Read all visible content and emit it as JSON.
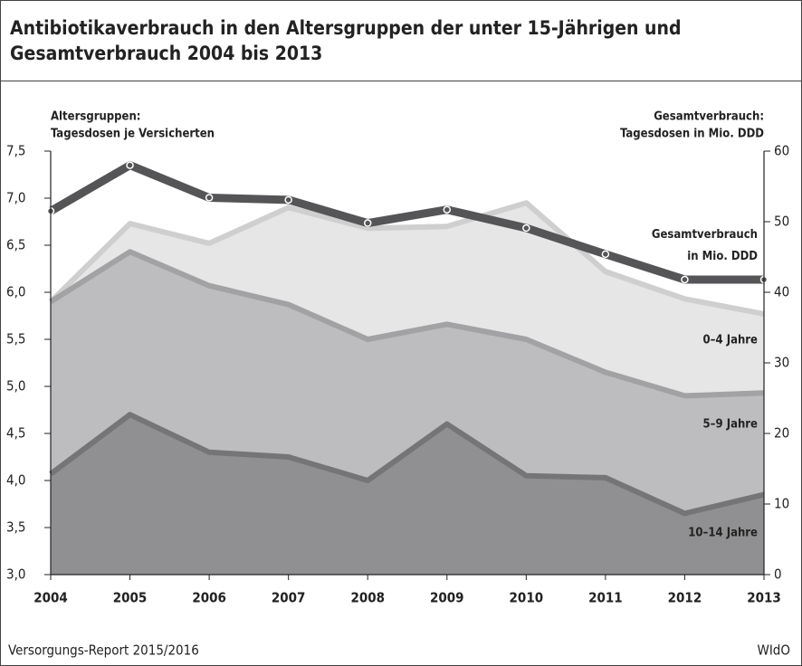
{
  "chart_data": {
    "type": "area-line",
    "title": "Antibiotikaverbrauch in den Altersgruppen der unter 15-Jährigen und Gesamtverbrauch 2004 bis 2013",
    "y_label": [
      "Altersgruppen:",
      "Tagesdosen je Versicherten"
    ],
    "y2_label": [
      "Gesamtverbrauch:",
      "Tagesdosen in Mio. DDD"
    ],
    "categories": [
      "2004",
      "2005",
      "2006",
      "2007",
      "2008",
      "2009",
      "2010",
      "2011",
      "2012",
      "2013"
    ],
    "ylim": [
      3.0,
      7.5
    ],
    "yticks": [
      {
        "value": 3.0,
        "label": "3,0"
      },
      {
        "value": 3.5,
        "label": "3,5"
      },
      {
        "value": 4.0,
        "label": "4,0"
      },
      {
        "value": 4.5,
        "label": "4,5"
      },
      {
        "value": 5.0,
        "label": "5,0"
      },
      {
        "value": 5.5,
        "label": "5,5"
      },
      {
        "value": 6.0,
        "label": "6,0"
      },
      {
        "value": 6.5,
        "label": "6,5"
      },
      {
        "value": 7.0,
        "label": "7,0"
      },
      {
        "value": 7.5,
        "label": "7,5"
      }
    ],
    "y2lim": [
      0,
      60
    ],
    "y2ticks": [
      0,
      10,
      20,
      30,
      40,
      50,
      60
    ],
    "series": [
      {
        "name": "0–4 Jahre",
        "fill": "#e6e6e7",
        "color": "#cfcfd0",
        "values": [
          5.9,
          6.73,
          6.52,
          6.9,
          6.68,
          6.7,
          6.95,
          6.22,
          5.93,
          5.77
        ]
      },
      {
        "name": "5–9 Jahre",
        "fill": "#bdbdbf",
        "color": "#a2a2a4",
        "values": [
          5.9,
          6.43,
          6.07,
          5.87,
          5.5,
          5.66,
          5.5,
          5.15,
          4.9,
          4.93
        ]
      },
      {
        "name": "10–14 Jahre",
        "fill": "#909092",
        "color": "#757577",
        "values": [
          4.07,
          4.7,
          4.3,
          4.25,
          4.0,
          4.6,
          4.05,
          4.03,
          3.65,
          3.85
        ]
      },
      {
        "name": "Gesamtverbrauch in Mio. DDD",
        "color": "#555557",
        "axis": "y2",
        "values": [
          51.5,
          58,
          53.4,
          53.1,
          49.8,
          51.7,
          49.1,
          45.4,
          41.8,
          41.8
        ]
      }
    ],
    "source": "Versorgungs-Report 2015/2016",
    "publisher": "WIdO"
  }
}
